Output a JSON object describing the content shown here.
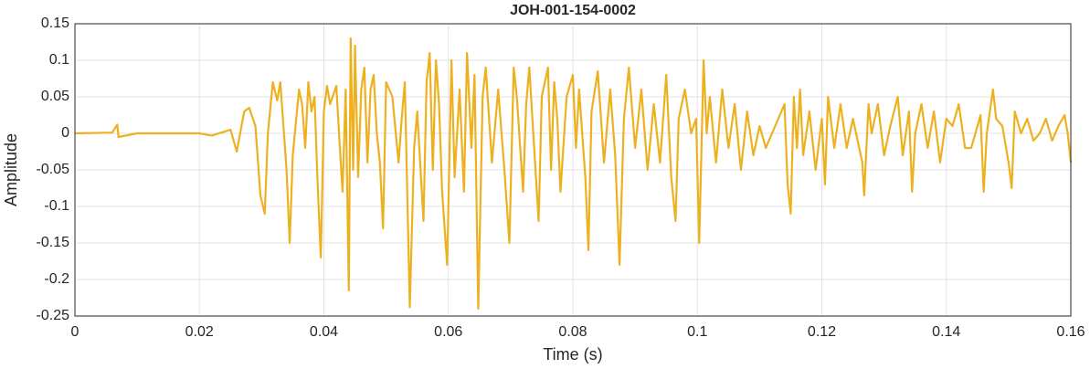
{
  "chart_data": {
    "type": "line",
    "title": "JOH-001-154-0002",
    "xlabel": "Time (s)",
    "ylabel": "Amplitude",
    "color": "#EDB120",
    "grid": true,
    "xlim": [
      0,
      0.16
    ],
    "ylim": [
      -0.25,
      0.15
    ],
    "xticks": [
      0,
      0.02,
      0.04,
      0.06,
      0.08,
      0.1,
      0.12,
      0.14,
      0.16
    ],
    "yticks": [
      -0.25,
      -0.2,
      -0.15,
      -0.1,
      -0.05,
      0,
      0.05,
      0.1,
      0.15
    ],
    "x": [
      0,
      0.006,
      0.0068,
      0.007,
      0.01,
      0.015,
      0.02,
      0.022,
      0.025,
      0.026,
      0.0272,
      0.028,
      0.029,
      0.0298,
      0.0305,
      0.031,
      0.0318,
      0.0325,
      0.033,
      0.034,
      0.0345,
      0.035,
      0.036,
      0.0365,
      0.037,
      0.0375,
      0.038,
      0.0385,
      0.039,
      0.0395,
      0.04,
      0.0405,
      0.041,
      0.042,
      0.0425,
      0.043,
      0.0435,
      0.044,
      0.0443,
      0.0447,
      0.045,
      0.0455,
      0.046,
      0.0465,
      0.047,
      0.0475,
      0.048,
      0.0485,
      0.049,
      0.0495,
      0.05,
      0.051,
      0.052,
      0.0525,
      0.053,
      0.0538,
      0.0545,
      0.055,
      0.056,
      0.0565,
      0.057,
      0.0575,
      0.058,
      0.0585,
      0.059,
      0.0598,
      0.0605,
      0.061,
      0.0618,
      0.0625,
      0.063,
      0.0637,
      0.0642,
      0.0648,
      0.0655,
      0.066,
      0.067,
      0.068,
      0.069,
      0.0698,
      0.0705,
      0.071,
      0.072,
      0.0725,
      0.073,
      0.074,
      0.0745,
      0.075,
      0.076,
      0.0765,
      0.077,
      0.0775,
      0.078,
      0.079,
      0.08,
      0.0805,
      0.081,
      0.082,
      0.0825,
      0.083,
      0.084,
      0.085,
      0.086,
      0.0868,
      0.0875,
      0.0882,
      0.089,
      0.09,
      0.091,
      0.092,
      0.093,
      0.094,
      0.095,
      0.0958,
      0.0965,
      0.097,
      0.098,
      0.099,
      0.0998,
      0.1003,
      0.101,
      0.1015,
      0.102,
      0.103,
      0.104,
      0.105,
      0.106,
      0.107,
      0.108,
      0.109,
      0.11,
      0.111,
      0.112,
      0.113,
      0.114,
      0.1145,
      0.115,
      0.1155,
      0.116,
      0.1165,
      0.117,
      0.118,
      0.119,
      0.12,
      0.1205,
      0.121,
      0.122,
      0.123,
      0.124,
      0.125,
      0.1265,
      0.1268,
      0.1275,
      0.128,
      0.129,
      0.13,
      0.131,
      0.1322,
      0.133,
      0.134,
      0.1345,
      0.135,
      0.136,
      0.137,
      0.138,
      0.139,
      0.14,
      0.141,
      0.142,
      0.143,
      0.144,
      0.1455,
      0.146,
      0.1465,
      0.1475,
      0.148,
      0.149,
      0.15,
      0.1505,
      0.151,
      0.152,
      0.153,
      0.154,
      0.155,
      0.156,
      0.157,
      0.158,
      0.159,
      0.1595,
      0.16
    ],
    "values": [
      0,
      0.001,
      0.012,
      -0.005,
      0,
      0,
      0,
      -0.003,
      0.005,
      -0.025,
      0.03,
      0.035,
      0.01,
      -0.085,
      -0.11,
      0,
      0.07,
      0.045,
      0.07,
      -0.05,
      -0.15,
      -0.03,
      0.06,
      0.04,
      -0.02,
      0.07,
      0.03,
      0.05,
      -0.07,
      -0.17,
      0.03,
      0.065,
      0.04,
      0.065,
      -0.01,
      -0.08,
      0.06,
      -0.215,
      0.13,
      -0.05,
      0.12,
      -0.06,
      0.06,
      0.09,
      -0.04,
      0.06,
      0.08,
      0,
      -0.04,
      -0.13,
      0.07,
      0.05,
      -0.04,
      0.02,
      0.07,
      -0.238,
      -0.02,
      0.03,
      -0.12,
      0.07,
      0.11,
      -0.05,
      0.1,
      0.04,
      -0.08,
      -0.18,
      0.1,
      -0.06,
      0.06,
      -0.08,
      0.11,
      -0.02,
      0.08,
      -0.24,
      0.05,
      0.09,
      -0.04,
      0.06,
      -0.05,
      -0.15,
      0.09,
      0.05,
      -0.08,
      0.04,
      0.09,
      -0.05,
      -0.12,
      0.05,
      0.09,
      -0.05,
      0.07,
      0.02,
      -0.08,
      0.05,
      0.08,
      -0.02,
      0.06,
      -0.06,
      -0.16,
      0.03,
      0.085,
      -0.04,
      0.06,
      -0.03,
      -0.18,
      0.02,
      0.09,
      -0.02,
      0.06,
      -0.05,
      0.04,
      -0.04,
      0.08,
      -0.06,
      -0.12,
      0.02,
      0.06,
      0,
      0.02,
      -0.15,
      0.1,
      0,
      0.05,
      -0.04,
      0.06,
      -0.02,
      0.04,
      -0.05,
      0.03,
      -0.03,
      0.01,
      -0.02,
      0,
      0.02,
      0.04,
      -0.07,
      -0.11,
      0.05,
      -0.02,
      0.06,
      -0.03,
      0.03,
      -0.05,
      0.02,
      -0.07,
      0.05,
      -0.02,
      0.04,
      -0.02,
      0.02,
      -0.04,
      -0.085,
      0.04,
      0,
      0.04,
      -0.03,
      0.01,
      0.05,
      -0.03,
      0.03,
      -0.08,
      0,
      0.04,
      -0.02,
      0.03,
      -0.04,
      0.02,
      0.01,
      0.04,
      -0.02,
      -0.02,
      0.025,
      -0.08,
      0,
      0.06,
      0.02,
      0.01,
      -0.04,
      -0.075,
      0.03,
      0,
      0.02,
      -0.01,
      0,
      0.02,
      -0.01,
      0.01,
      0.025,
      0,
      -0.04
    ]
  }
}
